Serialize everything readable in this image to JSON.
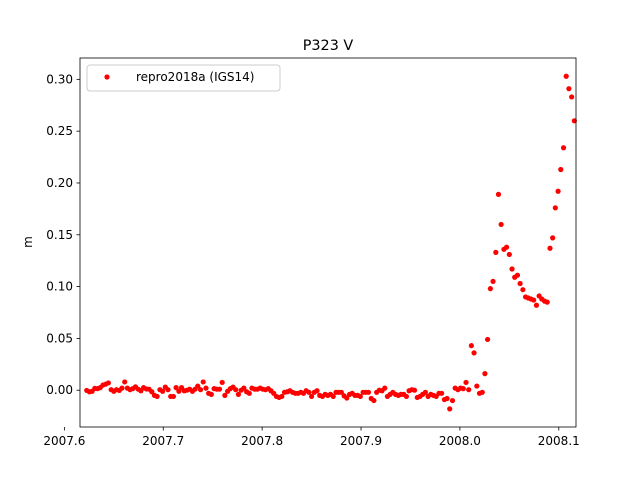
{
  "chart_data": {
    "type": "scatter",
    "title": "P323 V",
    "xlabel": "",
    "ylabel": "m",
    "xlim": [
      2007.6158,
      2008.1174
    ],
    "ylim": [
      -0.0355,
      0.3206
    ],
    "xticks": [
      {
        "value": 2007.7,
        "label": "2007.7"
      },
      {
        "value": 2007.8,
        "label": "2007.8"
      },
      {
        "value": 2007.9,
        "label": "2007.9"
      },
      {
        "value": 2008.0,
        "label": "2008.0"
      },
      {
        "value": 2008.1,
        "label": "2008.1"
      }
    ],
    "xtick_offset_label": "2007.6",
    "yticks": [
      {
        "value": 0.0,
        "label": "0.00"
      },
      {
        "value": 0.05,
        "label": "0.05"
      },
      {
        "value": 0.1,
        "label": "0.10"
      },
      {
        "value": 0.15,
        "label": "0.15"
      },
      {
        "value": 0.2,
        "label": "0.20"
      },
      {
        "value": 0.25,
        "label": "0.25"
      },
      {
        "value": 0.3,
        "label": "0.30"
      }
    ],
    "grid": false,
    "legend_position": "top-left",
    "series": [
      {
        "name": "repro2018a (IGS14)",
        "color": "#ff0000",
        "marker": "circle",
        "points": [
          [
            2007.6226,
            -0.0002
          ],
          [
            2007.6253,
            -0.0015
          ],
          [
            2007.6281,
            -0.001
          ],
          [
            2007.6308,
            0.0018
          ],
          [
            2007.6336,
            0.0015
          ],
          [
            2007.6363,
            0.0025
          ],
          [
            2007.639,
            0.005
          ],
          [
            2007.6418,
            0.0058
          ],
          [
            2007.6445,
            0.007
          ],
          [
            2007.6473,
            0.0005
          ],
          [
            2007.65,
            -0.001
          ],
          [
            2007.6527,
            0.0005
          ],
          [
            2007.6555,
            -0.0002
          ],
          [
            2007.6582,
            0.002
          ],
          [
            2007.661,
            0.008
          ],
          [
            2007.6637,
            0.002
          ],
          [
            2007.6664,
            0.0005
          ],
          [
            2007.6692,
            0.0015
          ],
          [
            2007.6719,
            0.0032
          ],
          [
            2007.6747,
            0.001
          ],
          [
            2007.6774,
            -0.0005
          ],
          [
            2007.6801,
            0.0025
          ],
          [
            2007.6829,
            0.0012
          ],
          [
            2007.6856,
            0.001
          ],
          [
            2007.6884,
            -0.0015
          ],
          [
            2007.6911,
            -0.005
          ],
          [
            2007.6938,
            -0.006
          ],
          [
            2007.6966,
            0.0005
          ],
          [
            2007.6993,
            -0.001
          ],
          [
            2007.7021,
            0.003
          ],
          [
            2007.7048,
            0.0005
          ],
          [
            2007.7075,
            -0.006
          ],
          [
            2007.7103,
            -0.006
          ],
          [
            2007.713,
            0.0025
          ],
          [
            2007.7158,
            -0.001
          ],
          [
            2007.7185,
            0.0025
          ],
          [
            2007.7212,
            -0.0005
          ],
          [
            2007.724,
            0.0
          ],
          [
            2007.7267,
            0.001
          ],
          [
            2007.7295,
            -0.001
          ],
          [
            2007.7322,
            0.001
          ],
          [
            2007.7349,
            0.004
          ],
          [
            2007.7377,
            0.0005
          ],
          [
            2007.7404,
            0.008
          ],
          [
            2007.7432,
            0.002
          ],
          [
            2007.7459,
            -0.003
          ],
          [
            2007.7486,
            -0.004
          ],
          [
            2007.7514,
            0.0015
          ],
          [
            2007.7541,
            0.001
          ],
          [
            2007.7569,
            0.001
          ],
          [
            2007.7596,
            0.0075
          ],
          [
            2007.7623,
            -0.005
          ],
          [
            2007.7651,
            -0.001
          ],
          [
            2007.7678,
            0.0015
          ],
          [
            2007.7706,
            0.003
          ],
          [
            2007.7733,
            0.0005
          ],
          [
            2007.776,
            -0.004
          ],
          [
            2007.7788,
            0.0
          ],
          [
            2007.7815,
            0.002
          ],
          [
            2007.7843,
            -0.0015
          ],
          [
            2007.787,
            -0.003
          ],
          [
            2007.7897,
            0.002
          ],
          [
            2007.7925,
            0.001
          ],
          [
            2007.7952,
            0.001
          ],
          [
            2007.798,
            0.002
          ],
          [
            2007.8007,
            0.001
          ],
          [
            2007.8034,
            0.0005
          ],
          [
            2007.8062,
            0.0015
          ],
          [
            2007.8089,
            -0.0005
          ],
          [
            2007.8117,
            -0.003
          ],
          [
            2007.8144,
            -0.006
          ],
          [
            2007.8171,
            -0.007
          ],
          [
            2007.8199,
            -0.006
          ],
          [
            2007.8226,
            -0.002
          ],
          [
            2007.8254,
            -0.0015
          ],
          [
            2007.8281,
            -0.0005
          ],
          [
            2007.8308,
            -0.002
          ],
          [
            2007.8336,
            -0.003
          ],
          [
            2007.8363,
            -0.003
          ],
          [
            2007.8391,
            -0.002
          ],
          [
            2007.8418,
            -0.003
          ],
          [
            2007.8445,
            -0.0005
          ],
          [
            2007.8473,
            -0.002
          ],
          [
            2007.85,
            -0.006
          ],
          [
            2007.8527,
            -0.002
          ],
          [
            2007.8555,
            -0.0005
          ],
          [
            2007.8582,
            -0.005
          ],
          [
            2007.861,
            -0.006
          ],
          [
            2007.8637,
            -0.004
          ],
          [
            2007.8664,
            -0.005
          ],
          [
            2007.8692,
            -0.004
          ],
          [
            2007.8719,
            -0.006
          ],
          [
            2007.8747,
            -0.002
          ],
          [
            2007.8774,
            -0.002
          ],
          [
            2007.8801,
            -0.002
          ],
          [
            2007.8829,
            -0.0055
          ],
          [
            2007.8856,
            -0.0075
          ],
          [
            2007.8884,
            -0.004
          ],
          [
            2007.8911,
            -0.003
          ],
          [
            2007.8938,
            -0.005
          ],
          [
            2007.8966,
            -0.005
          ],
          [
            2007.8993,
            -0.006
          ],
          [
            2007.9021,
            -0.002
          ],
          [
            2007.9048,
            -0.002
          ],
          [
            2007.9075,
            -0.002
          ],
          [
            2007.9103,
            -0.008
          ],
          [
            2007.913,
            -0.01
          ],
          [
            2007.9158,
            -0.002
          ],
          [
            2007.9185,
            0.0
          ],
          [
            2007.9212,
            -0.0005
          ],
          [
            2007.924,
            0.002
          ],
          [
            2007.9267,
            -0.006
          ],
          [
            2007.9295,
            -0.004
          ],
          [
            2007.9322,
            -0.002
          ],
          [
            2007.9349,
            -0.004
          ],
          [
            2007.9377,
            -0.005
          ],
          [
            2007.9404,
            -0.004
          ],
          [
            2007.9432,
            -0.004
          ],
          [
            2007.9459,
            -0.006
          ],
          [
            2007.9486,
            -0.0005
          ],
          [
            2007.9514,
            0.0005
          ],
          [
            2007.9541,
            0.0
          ],
          [
            2007.9569,
            -0.007
          ],
          [
            2007.9596,
            -0.006
          ],
          [
            2007.9623,
            -0.004
          ],
          [
            2007.9651,
            -0.002
          ],
          [
            2007.9678,
            -0.006
          ],
          [
            2007.9706,
            -0.004
          ],
          [
            2007.9733,
            -0.005
          ],
          [
            2007.976,
            -0.006
          ],
          [
            2007.9788,
            -0.003
          ],
          [
            2007.9815,
            -0.003
          ],
          [
            2007.9843,
            -0.009
          ],
          [
            2007.987,
            -0.008
          ],
          [
            2007.9897,
            -0.018
          ],
          [
            2007.9925,
            -0.01
          ],
          [
            2007.9952,
            0.002
          ],
          [
            2007.998,
            0.0005
          ],
          [
            2008.0007,
            0.002
          ],
          [
            2008.0034,
            0.0015
          ],
          [
            2008.0062,
            0.0075
          ],
          [
            2008.0089,
            0.0005
          ],
          [
            2008.0116,
            0.043
          ],
          [
            2008.0143,
            0.036
          ],
          [
            2008.0171,
            0.004
          ],
          [
            2008.0198,
            -0.003
          ],
          [
            2008.0226,
            -0.002
          ],
          [
            2008.0253,
            0.016
          ],
          [
            2008.028,
            0.049
          ],
          [
            2008.0308,
            0.098
          ],
          [
            2008.0335,
            0.105
          ],
          [
            2008.0363,
            0.133
          ],
          [
            2008.039,
            0.189
          ],
          [
            2008.0417,
            0.16
          ],
          [
            2008.0445,
            0.136
          ],
          [
            2008.0472,
            0.138
          ],
          [
            2008.05,
            0.131
          ],
          [
            2008.0527,
            0.117
          ],
          [
            2008.0554,
            0.109
          ],
          [
            2008.0582,
            0.111
          ],
          [
            2008.0609,
            0.103
          ],
          [
            2008.0637,
            0.097
          ],
          [
            2008.0664,
            0.09
          ],
          [
            2008.0691,
            0.089
          ],
          [
            2008.0719,
            0.088
          ],
          [
            2008.0746,
            0.087
          ],
          [
            2008.0774,
            0.082
          ],
          [
            2008.0801,
            0.091
          ],
          [
            2008.0828,
            0.088
          ],
          [
            2008.0856,
            0.086
          ],
          [
            2008.0883,
            0.085
          ],
          [
            2008.0911,
            0.137
          ],
          [
            2008.0938,
            0.147
          ],
          [
            2008.0965,
            0.176
          ],
          [
            2008.0993,
            0.192
          ],
          [
            2008.102,
            0.213
          ],
          [
            2008.1048,
            0.234
          ],
          [
            2008.1075,
            0.303
          ],
          [
            2008.1102,
            0.291
          ],
          [
            2008.113,
            0.283
          ],
          [
            2008.1157,
            0.26
          ]
        ]
      }
    ]
  }
}
